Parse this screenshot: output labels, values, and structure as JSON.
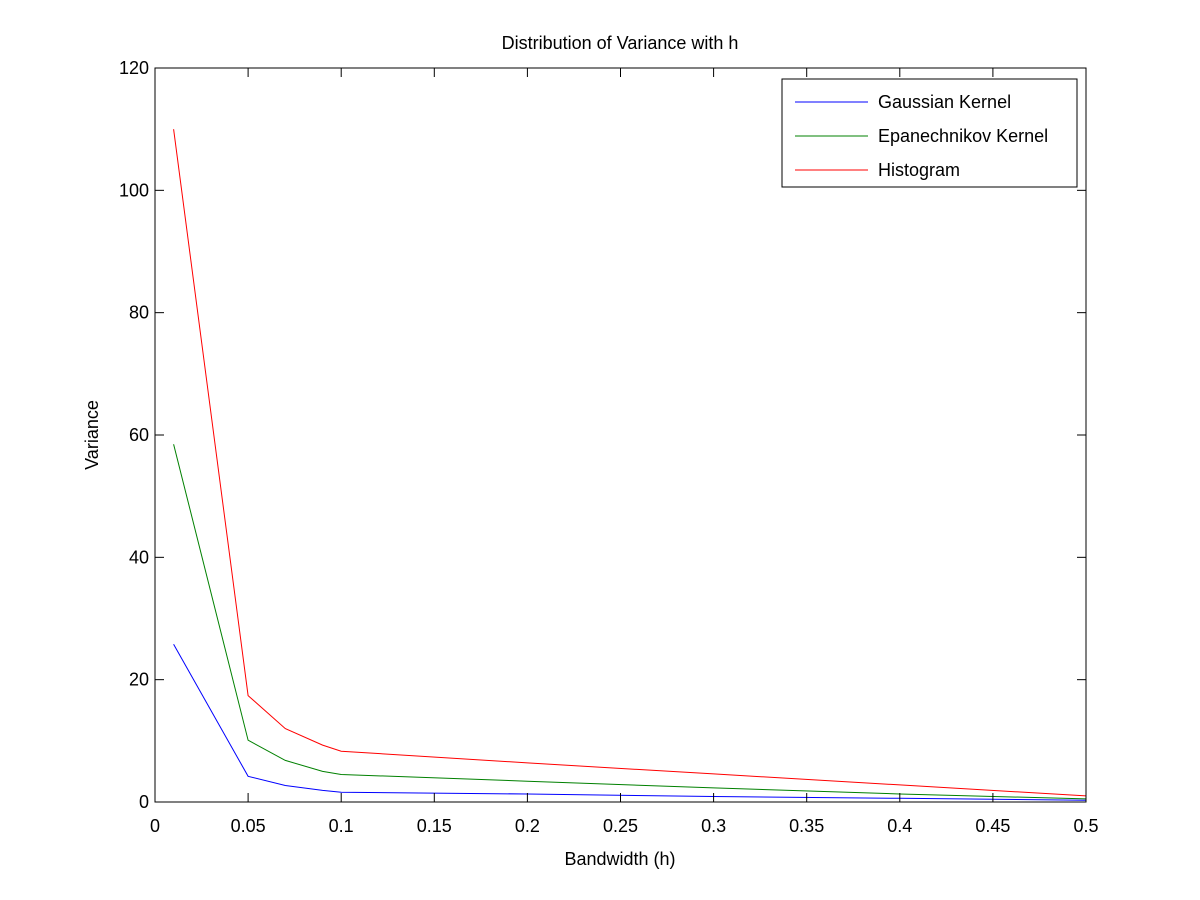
{
  "chart_data": {
    "type": "line",
    "title": "Distribution of Variance with h",
    "xlabel": "Bandwidth (h)",
    "ylabel": "Variance",
    "xlim": [
      0,
      0.5
    ],
    "ylim": [
      0,
      120
    ],
    "xticks": [
      0,
      0.05,
      0.1,
      0.15,
      0.2,
      0.25,
      0.3,
      0.35,
      0.4,
      0.45,
      0.5
    ],
    "xtick_labels": [
      "0",
      "0.05",
      "0.1",
      "0.15",
      "0.2",
      "0.25",
      "0.3",
      "0.35",
      "0.4",
      "0.45",
      "0.5"
    ],
    "yticks": [
      0,
      20,
      40,
      60,
      80,
      100,
      120
    ],
    "ytick_labels": [
      "0",
      "20",
      "40",
      "60",
      "80",
      "100",
      "120"
    ],
    "grid": false,
    "legend_position": "top-right",
    "x": [
      0.01,
      0.05,
      0.07,
      0.09,
      0.1,
      0.2,
      0.3,
      0.4,
      0.5
    ],
    "series": [
      {
        "name": "Gaussian Kernel",
        "color": "#0000ff",
        "values": [
          25.8,
          4.2,
          2.7,
          1.9,
          1.6,
          1.3,
          0.9,
          0.6,
          0.3
        ]
      },
      {
        "name": "Epanechnikov Kernel",
        "color": "#008000",
        "values": [
          58.5,
          10.1,
          6.8,
          5.0,
          4.5,
          3.4,
          2.3,
          1.3,
          0.5
        ]
      },
      {
        "name": "Histogram",
        "color": "#ff0000",
        "values": [
          110,
          17.4,
          12.0,
          9.3,
          8.3,
          6.4,
          4.6,
          2.8,
          1.0
        ]
      }
    ]
  }
}
